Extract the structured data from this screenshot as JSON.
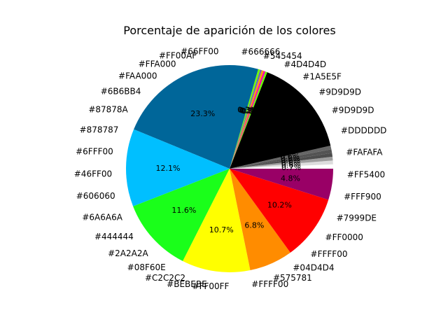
{
  "chart_data": {
    "type": "pie",
    "title": "Porcentaje de aparición de los colores",
    "legend": "none",
    "start_angle_deg": 0,
    "direction": "counterclockwise",
    "visible_labels": [
      "#FAFAFA",
      "#DDDDDD",
      "#9D9D9D",
      "#9D9D9D",
      "#1A5E5F",
      "#4D4D4D",
      "#545454",
      "#666666",
      "#66FF00",
      "#FF00AF",
      "#FFA000",
      "#FAA000",
      "#6B6BB4",
      "#87878A",
      "#878787",
      "#6FFF00",
      "#46FF00",
      "#606060",
      "#6A6A6A",
      "#444444",
      "#2A2A2A",
      "#08F60E",
      "#C2C2C2",
      "#BEBEBE",
      "#FF00FF",
      "#FFFF00",
      "#575781",
      "#04D4D4",
      "#FFFF00",
      "#FF0000",
      "#7999DE",
      "#FFF900",
      "#FF5400"
    ],
    "slices": [
      {
        "label": "#FAFAFA",
        "value": 0.7,
        "color": "#ffffff"
      },
      {
        "label": "#DDDDDD",
        "value": 0.6,
        "color": "#dddddd"
      },
      {
        "label": "#9D9D9D",
        "value": 0.6,
        "color": "#9d9d9d"
      },
      {
        "label": "#4D4D4D",
        "value": 0.6,
        "color": "#4d4d4d"
      },
      {
        "label": "#545454",
        "value": 0.6,
        "color": "#545454"
      },
      {
        "label": "#666666",
        "value": 0.6,
        "color": "#666666"
      },
      {
        "label": "#000000",
        "value": 16.0,
        "color": "#000000"
      },
      {
        "label": "#66FF00",
        "value": 0.3,
        "color": "#66ff00"
      },
      {
        "label": "#FF00AF",
        "value": 0.3,
        "color": "#ff00af"
      },
      {
        "label": "#FFA000",
        "value": 0.3,
        "color": "#ffa000"
      },
      {
        "label": "#6B6BB4",
        "value": 0.3,
        "color": "#6b6bb4"
      },
      {
        "label": "#6FFF00",
        "value": 0.3,
        "color": "#6fff00"
      },
      {
        "label": "#006699",
        "value": 24.0,
        "color": "#006699"
      },
      {
        "label": "#00BFFF",
        "value": 12.5,
        "color": "#00bfff"
      },
      {
        "label": "#1AFF1A",
        "value": 12.0,
        "color": "#1aff1a"
      },
      {
        "label": "#FFFF00",
        "value": 11.0,
        "color": "#ffff00"
      },
      {
        "label": "#FF8C00",
        "value": 7.0,
        "color": "#ff8c00"
      },
      {
        "label": "#FF0000",
        "value": 10.5,
        "color": "#ff0000"
      },
      {
        "label": "#990066",
        "value": 5.0,
        "color": "#990066"
      }
    ]
  }
}
